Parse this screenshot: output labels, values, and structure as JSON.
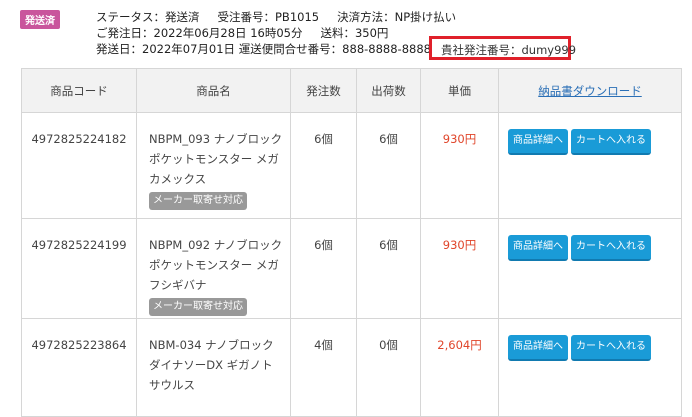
{
  "order": {
    "status_badge": "発送済",
    "status": "ステータス：発送済",
    "order_no": "受注番号：PB1015",
    "payment": "決済方法：NP掛け払い",
    "order_date": "ご発注日：2022年06月28日 16時05分",
    "shipping_fee": "送料：350円",
    "ship_date": "発送日：2022年07月01日 運送便問合せ番号：888-8888-8888",
    "your_order_no": "貴社発注番号：dumy999"
  },
  "table": {
    "headers": [
      "商品コード",
      "商品名",
      "発注数",
      "出荷数",
      "単価"
    ],
    "download_link": "納品書ダウンロード",
    "rows": [
      {
        "code": "4972825224182",
        "name": "NBPM_093 ナノブロック ポケットモンスター メガカメックス",
        "tag": "メーカー取寄せ対応",
        "ordered": "6個",
        "shipped": "6個",
        "price": "930円"
      },
      {
        "code": "4972825224199",
        "name": "NBPM_092 ナノブロック ポケットモンスター メガフシギバナ",
        "tag": "メーカー取寄せ対応",
        "ordered": "6個",
        "shipped": "6個",
        "price": "930円"
      },
      {
        "code": "4972825223864",
        "name": "NBM-034 ナノブロック ダイナソーDX ギガノトサウルス",
        "ordered": "4個",
        "shipped": "0個",
        "price": "2,604円"
      }
    ],
    "detail_button": "商品詳細へ",
    "cart_button": "カートへ入れる"
  },
  "colors": {
    "badge": "#c9559c",
    "button": "#1a9bd7",
    "price": "#e0452a",
    "highlight": "#e0202a"
  }
}
